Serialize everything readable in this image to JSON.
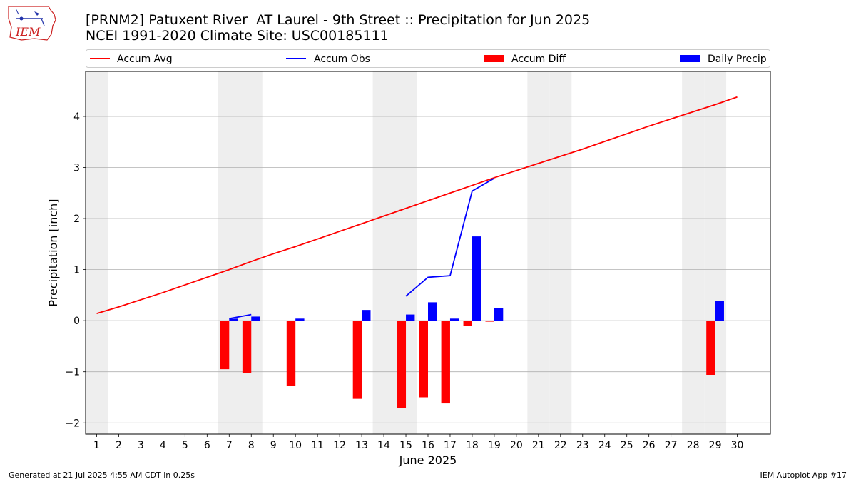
{
  "header": {
    "title": "[PRNM2] Patuxent River  AT Laurel - 9th Street :: Precipitation for Jun 2025",
    "subtitle": "NCEI 1991-2020 Climate Site: USC00185111",
    "logo_text": "IEM"
  },
  "footer": {
    "generated": "Generated at 21 Jul 2025 4:55 AM CDT in 0.25s",
    "app": "IEM Autoplot App #17"
  },
  "colors": {
    "accum_avg": "#ff0000",
    "accum_obs": "#0000ff",
    "accum_diff": "#ff0000",
    "daily_precip": "#0000ff",
    "weekend_shade": "#eeeeee",
    "grid": "#b0b0b0",
    "logo": "#cc2222"
  },
  "chart_data": {
    "type": "bar",
    "title": "[PRNM2] Patuxent River  AT Laurel - 9th Street :: Precipitation for Jun 2025",
    "xlabel": "June 2025",
    "ylabel": "Precipitation [inch]",
    "xlim": [
      0.5,
      31.5
    ],
    "ylim": [
      -2.22,
      4.88
    ],
    "x_ticks": [
      1,
      2,
      3,
      4,
      5,
      6,
      7,
      8,
      9,
      10,
      11,
      12,
      13,
      14,
      15,
      16,
      17,
      18,
      19,
      20,
      21,
      22,
      23,
      24,
      25,
      26,
      27,
      28,
      29,
      30
    ],
    "y_ticks": [
      -2,
      -1,
      0,
      1,
      2,
      3,
      4
    ],
    "y_tick_labels": [
      "−2",
      "−1",
      "0",
      "1",
      "2",
      "3",
      "4"
    ],
    "grid": "horizontal",
    "legend_position": "top (above plot, 4 columns)",
    "weekend_shading": [
      1,
      7,
      8,
      14,
      15,
      21,
      22,
      28,
      29
    ],
    "series": [
      {
        "name": "Accum Avg",
        "type": "line",
        "x": [
          1,
          2,
          3,
          4,
          5,
          6,
          7,
          8,
          9,
          10,
          11,
          12,
          13,
          14,
          15,
          16,
          17,
          18,
          19,
          20,
          21,
          22,
          23,
          24,
          25,
          26,
          27,
          28,
          29,
          30
        ],
        "values": [
          0.14,
          0.27,
          0.41,
          0.55,
          0.7,
          0.85,
          1.0,
          1.16,
          1.31,
          1.45,
          1.6,
          1.75,
          1.9,
          2.05,
          2.2,
          2.35,
          2.5,
          2.65,
          2.8,
          2.94,
          3.08,
          3.22,
          3.36,
          3.51,
          3.66,
          3.81,
          3.95,
          4.09,
          4.23,
          4.38
        ]
      },
      {
        "name": "Accum Obs",
        "type": "line",
        "segments": [
          {
            "x": [
              7,
              8
            ],
            "values": [
              0.04,
              0.12
            ]
          },
          {
            "x": [
              15,
              16,
              17,
              18,
              19
            ],
            "values": [
              0.48,
              0.85,
              0.88,
              2.54,
              2.79
            ]
          }
        ]
      },
      {
        "name": "Accum Diff",
        "type": "bar",
        "x": [
          7,
          8,
          10,
          13,
          15,
          16,
          17,
          18,
          19,
          29
        ],
        "values": [
          -0.95,
          -1.03,
          -1.28,
          -1.53,
          -1.71,
          -1.5,
          -1.62,
          -0.1,
          -0.02,
          -1.06
        ]
      },
      {
        "name": "Daily Precip",
        "type": "bar",
        "x": [
          7,
          8,
          10,
          13,
          15,
          16,
          17,
          18,
          19,
          29
        ],
        "values": [
          0.04,
          0.08,
          0.04,
          0.21,
          0.12,
          0.36,
          0.04,
          1.65,
          0.24,
          0.39
        ]
      }
    ]
  }
}
